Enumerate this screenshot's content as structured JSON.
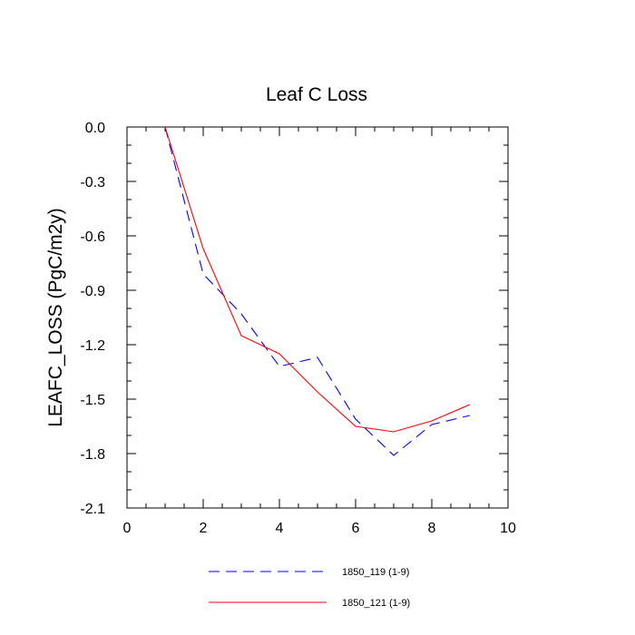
{
  "chart_data": {
    "type": "line",
    "title": "Leaf C Loss",
    "xlabel": "",
    "ylabel": "LEAFC_LOSS  (PgC/m2y)",
    "xlim": [
      0,
      10
    ],
    "ylim": [
      -2.1,
      0.0
    ],
    "x_ticks": [
      0,
      2,
      4,
      6,
      8,
      10
    ],
    "x_tick_labels": [
      "0",
      "2",
      "4",
      "6",
      "8",
      "10"
    ],
    "y_ticks": [
      0.0,
      -0.3,
      -0.6,
      -0.9,
      -1.2,
      -1.5,
      -1.8,
      -2.1
    ],
    "y_tick_labels": [
      "0.0",
      "-0.3",
      "-0.6",
      "-0.9",
      "-1.2",
      "-1.5",
      "-1.8",
      "-2.1"
    ],
    "grid": false,
    "legend_position": "bottom",
    "x": [
      1,
      2,
      3,
      4,
      5,
      6,
      7,
      8,
      9
    ],
    "series": [
      {
        "name": "1850_119 (1-9)",
        "color": "#0000ff",
        "dash": "dashed",
        "values": [
          0.0,
          -0.81,
          -1.03,
          -1.32,
          -1.27,
          -1.61,
          -1.81,
          -1.64,
          -1.59
        ]
      },
      {
        "name": "1850_121 (1-9)",
        "color": "#ff0000",
        "dash": "solid",
        "values": [
          0.0,
          -0.67,
          -1.15,
          -1.25,
          -1.46,
          -1.65,
          -1.68,
          -1.62,
          -1.53
        ]
      }
    ]
  }
}
